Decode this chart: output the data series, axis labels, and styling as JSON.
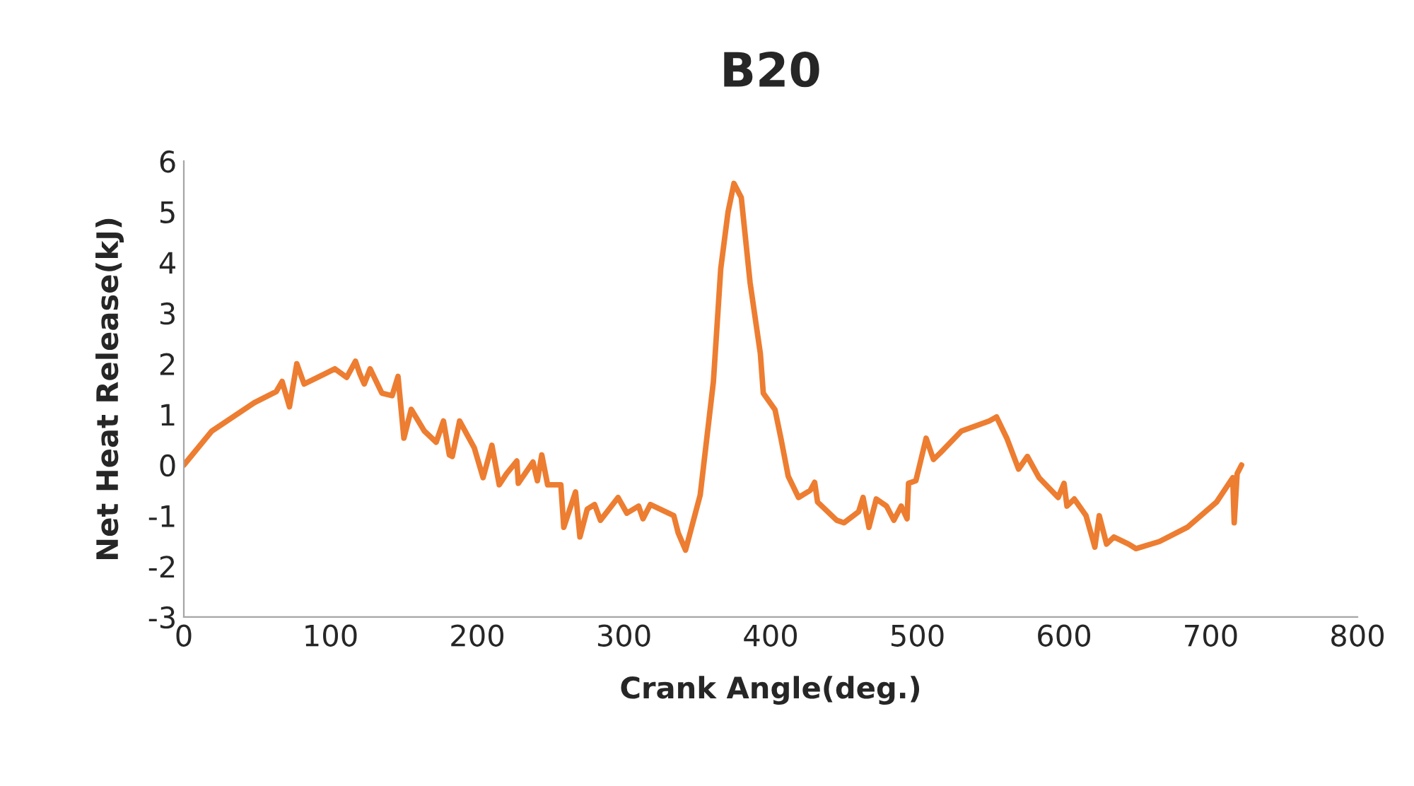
{
  "chart_data": {
    "type": "line",
    "title": "B20",
    "xlabel": "Crank Angle(deg.)",
    "ylabel": "Net Heat Release(kJ)",
    "xlim": [
      0,
      800
    ],
    "xticks": [
      0,
      100,
      200,
      300,
      400,
      500,
      600,
      700,
      800
    ],
    "ylim": [
      -3,
      6
    ],
    "yticks": [
      -3,
      -2,
      -1,
      0,
      1,
      2,
      3,
      4,
      5,
      6
    ],
    "grid": false,
    "marker": "none",
    "line_style": "solid",
    "series": [
      {
        "color": "#ed7d31",
        "x": [
          0,
          19,
          48,
          63,
          67,
          72,
          77,
          82,
          96,
          103,
          111,
          117,
          120,
          123,
          127,
          135,
          142,
          146,
          150,
          155,
          164,
          172,
          177,
          181,
          183,
          188,
          198,
          204,
          210,
          215,
          220,
          227,
          228,
          238,
          241,
          244,
          248,
          257,
          259,
          267,
          270,
          275,
          280,
          284,
          296,
          302,
          310,
          313,
          318,
          334,
          337,
          342,
          352,
          361,
          366,
          371,
          375,
          380,
          386,
          393,
          395,
          403,
          407,
          412,
          419,
          427,
          430,
          432,
          445,
          450,
          460,
          463,
          467,
          472,
          479,
          484,
          489,
          493,
          494,
          499,
          506,
          511,
          516,
          530,
          549,
          554,
          561,
          569,
          575,
          583,
          596,
          600,
          602,
          607,
          615,
          621,
          624,
          629,
          634,
          644,
          649,
          665,
          684,
          704,
          715,
          716,
          718,
          721
        ],
        "values": [
          0,
          0.67,
          1.23,
          1.45,
          1.65,
          1.15,
          2.0,
          1.6,
          1.8,
          1.9,
          1.73,
          2.05,
          1.8,
          1.6,
          1.9,
          1.42,
          1.37,
          1.75,
          0.53,
          1.1,
          0.67,
          0.45,
          0.87,
          0.2,
          0.17,
          0.87,
          0.34,
          -0.25,
          0.39,
          -0.39,
          -0.17,
          0.08,
          -0.36,
          0.06,
          -0.31,
          0.2,
          -0.39,
          -0.39,
          -1.23,
          -0.53,
          -1.42,
          -0.87,
          -0.78,
          -1.09,
          -0.64,
          -0.95,
          -0.81,
          -1.06,
          -0.78,
          -1.0,
          -1.34,
          -1.68,
          -0.59,
          1.65,
          3.88,
          5.0,
          5.56,
          5.28,
          3.6,
          2.2,
          1.42,
          1.09,
          0.53,
          -0.22,
          -0.64,
          -0.5,
          -0.34,
          -0.73,
          -1.09,
          -1.14,
          -0.92,
          -0.64,
          -1.23,
          -0.67,
          -0.81,
          -1.09,
          -0.81,
          -1.06,
          -0.36,
          -0.31,
          0.53,
          0.11,
          0.25,
          0.67,
          0.87,
          0.95,
          0.53,
          -0.08,
          0.17,
          -0.25,
          -0.64,
          -0.36,
          -0.81,
          -0.67,
          -1.0,
          -1.62,
          -1.0,
          -1.56,
          -1.42,
          -1.56,
          -1.65,
          -1.51,
          -1.23,
          -0.73,
          -0.25,
          -1.14,
          -0.17,
          0
        ]
      }
    ]
  }
}
